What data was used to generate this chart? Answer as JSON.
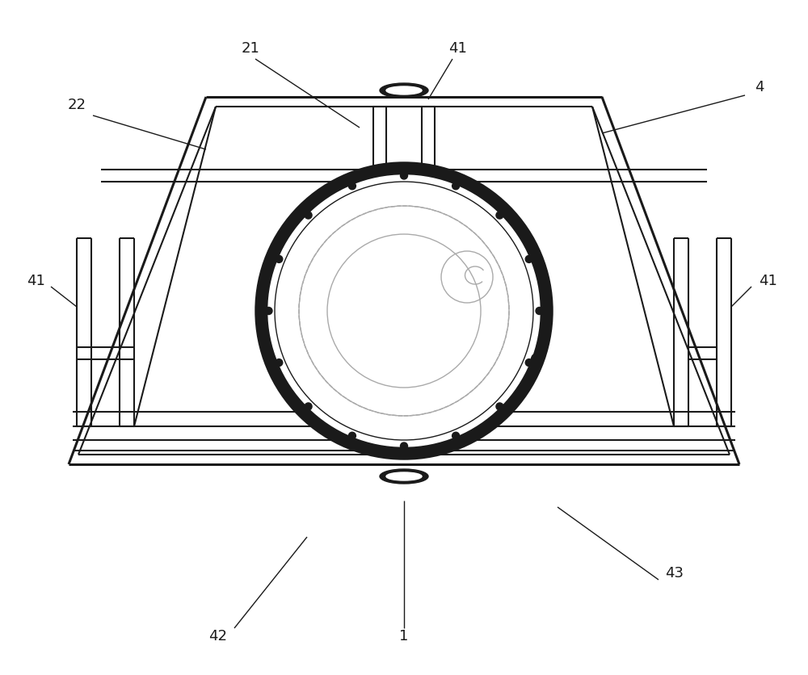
{
  "bg_color": "#ffffff",
  "line_color": "#1a1a1a",
  "gray_color": "#aaaaaa",
  "figsize": [
    10.0,
    8.36
  ],
  "dpi": 100,
  "label_fs": 13
}
